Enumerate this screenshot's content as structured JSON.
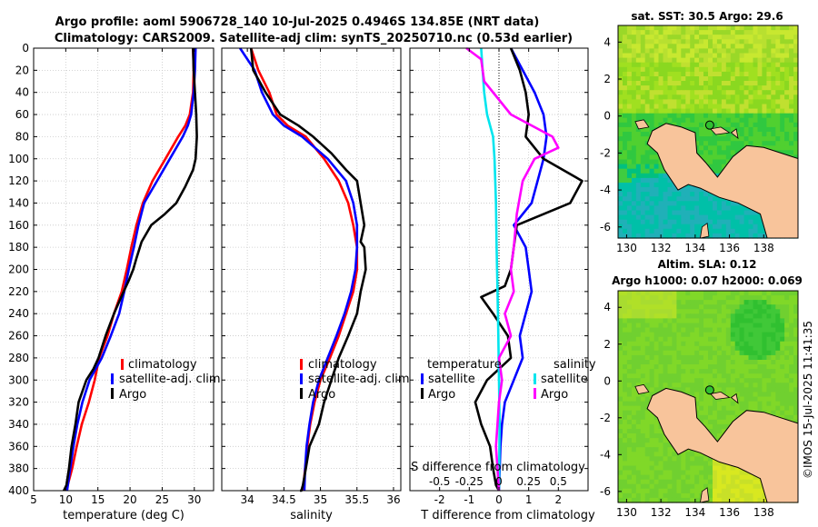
{
  "header": {
    "title_line1": "Argo profile: aoml 5906728_140 10-Jul-2025 0.4946S 134.85E (NRT data)",
    "title_line2": "Climatology: CARS2009. Satellite-adj clim: synTS_20250710.nc (0.53d earlier)"
  },
  "colors": {
    "climatology": "#ff0000",
    "satellite": "#0000ff",
    "argo": "#000000",
    "sal_satellite": "#00e5ee",
    "sal_argo": "#ff00ff",
    "land": "#f8c49b",
    "ocean_deep": "#00c0c0"
  },
  "chart_data": [
    {
      "type": "line",
      "name": "temperature",
      "xlabel": "temperature (deg C)",
      "ylabel": "",
      "xlim": [
        5,
        33
      ],
      "ylim": [
        400,
        0
      ],
      "xticks": [
        5,
        10,
        15,
        20,
        25,
        30
      ],
      "yticks": [
        0,
        20,
        40,
        60,
        80,
        100,
        120,
        140,
        160,
        180,
        200,
        220,
        240,
        260,
        280,
        300,
        320,
        340,
        360,
        380,
        400
      ],
      "legend": [
        "climatology",
        "satellite-adj. clim",
        "Argo"
      ],
      "series": [
        {
          "name": "climatology",
          "color": "#ff0000",
          "x": [
            29.8,
            29.9,
            29.8,
            29.3,
            28.6,
            27.5,
            25.5,
            23.5,
            22.0,
            21.0,
            20.2,
            19.5,
            18.7,
            17.5,
            16.5,
            15.2,
            14.5,
            13.6,
            12.5,
            11.7,
            11.0,
            10.3,
            9.8
          ],
          "y": [
            0,
            20,
            40,
            60,
            70,
            80,
            100,
            120,
            140,
            160,
            180,
            200,
            220,
            240,
            260,
            280,
            300,
            320,
            340,
            360,
            380,
            395,
            400
          ]
        },
        {
          "name": "satellite-adj. clim",
          "color": "#0000ff",
          "x": [
            30.2,
            30.1,
            29.9,
            29.5,
            29.0,
            28.2,
            26.2,
            24.2,
            22.2,
            21.3,
            20.6,
            19.8,
            19.1,
            18.3,
            17.0,
            15.6,
            13.7,
            12.6,
            11.8,
            11.2,
            10.7,
            10.2
          ],
          "y": [
            0,
            20,
            40,
            60,
            70,
            80,
            100,
            120,
            140,
            160,
            180,
            200,
            220,
            240,
            260,
            280,
            300,
            320,
            340,
            360,
            380,
            400
          ]
        },
        {
          "name": "Argo",
          "color": "#000000",
          "x": [
            29.8,
            29.9,
            30.1,
            30.3,
            30.4,
            30.2,
            29.8,
            28.6,
            27.2,
            25.4,
            23.3,
            21.8,
            21.0,
            20.5,
            19.8,
            19.0,
            17.5,
            16.2,
            15.1,
            14.3,
            13.2,
            12.0,
            11.5,
            10.9,
            10.5,
            10.1,
            9.7
          ],
          "y": [
            0,
            20,
            40,
            60,
            80,
            100,
            110,
            125,
            140,
            150,
            160,
            175,
            190,
            200,
            210,
            220,
            240,
            260,
            280,
            290,
            300,
            320,
            340,
            360,
            380,
            395,
            400
          ]
        }
      ]
    },
    {
      "type": "line",
      "name": "salinity",
      "xlabel": "salinity",
      "xlim": [
        33.65,
        36.1
      ],
      "ylim": [
        400,
        0
      ],
      "xticks": [
        34,
        34.5,
        35,
        35.5,
        36
      ],
      "legend": [
        "climatology",
        "satellite-adj. clim",
        "Argo"
      ],
      "series": [
        {
          "name": "climatology",
          "color": "#ff0000",
          "x": [
            34.05,
            34.15,
            34.3,
            34.4,
            34.55,
            34.8,
            35.05,
            35.25,
            35.38,
            35.45,
            35.5,
            35.5,
            35.45,
            35.35,
            35.25,
            35.13,
            35.0,
            34.92,
            34.86,
            34.82,
            34.79,
            34.76
          ],
          "y": [
            0,
            20,
            40,
            60,
            70,
            80,
            100,
            120,
            140,
            160,
            180,
            200,
            220,
            240,
            260,
            280,
            300,
            320,
            340,
            360,
            380,
            400
          ]
        },
        {
          "name": "satellite-adj. clim",
          "color": "#0000ff",
          "x": [
            33.9,
            34.1,
            34.2,
            34.35,
            34.5,
            34.75,
            35.1,
            35.35,
            35.45,
            35.5,
            35.5,
            35.48,
            35.42,
            35.33,
            35.22,
            35.1,
            34.98,
            34.9,
            34.85,
            34.81,
            34.79,
            34.78
          ],
          "y": [
            0,
            20,
            40,
            60,
            70,
            80,
            100,
            120,
            140,
            160,
            180,
            200,
            220,
            240,
            260,
            280,
            300,
            320,
            340,
            360,
            380,
            400
          ]
        },
        {
          "name": "Argo",
          "color": "#000000",
          "x": [
            34.05,
            34.08,
            34.25,
            34.45,
            34.7,
            34.9,
            35.15,
            35.35,
            35.5,
            35.55,
            35.6,
            35.55,
            35.6,
            35.62,
            35.55,
            35.5,
            35.38,
            35.25,
            35.15,
            35.05,
            34.98,
            34.85,
            34.8,
            34.76,
            34.74,
            34.72
          ],
          "y": [
            0,
            20,
            40,
            60,
            70,
            80,
            95,
            110,
            120,
            140,
            160,
            175,
            180,
            200,
            220,
            240,
            260,
            280,
            300,
            320,
            340,
            360,
            380,
            395,
            400,
            400
          ]
        }
      ]
    },
    {
      "type": "line",
      "name": "difference",
      "xlabel": "T difference from climatology",
      "xlabel_top": "S difference from climatology",
      "xlim": [
        -3,
        3
      ],
      "ylim": [
        400,
        0
      ],
      "xticks": [
        -2,
        -1,
        0,
        1,
        2
      ],
      "xticks_s_labels": [
        "-0.5",
        "-0.25",
        "0",
        "0.25",
        "0.5"
      ],
      "legend_t_title": "temperature",
      "legend_s_title": "salinity",
      "legend_t": [
        "satellite",
        "Argo"
      ],
      "legend_s": [
        "satellite",
        "Argo"
      ],
      "series": [
        {
          "name": "T satellite",
          "color": "#0000ff",
          "x": [
            0.4,
            0.8,
            1.2,
            1.5,
            1.6,
            1.5,
            1.3,
            1.1,
            0.5,
            0.9,
            1.0,
            1.1,
            0.9,
            0.7,
            0.8,
            0.5,
            0.2,
            0.1,
            0.05,
            0.0
          ],
          "y": [
            0,
            20,
            40,
            60,
            80,
            100,
            120,
            140,
            160,
            180,
            200,
            220,
            240,
            260,
            280,
            300,
            320,
            340,
            360,
            400
          ]
        },
        {
          "name": "T Argo",
          "color": "#000000",
          "x": [
            0.4,
            0.7,
            0.9,
            1.0,
            0.9,
            1.5,
            2.8,
            2.4,
            0.6,
            0.5,
            0.4,
            0.2,
            -0.6,
            -0.2,
            0.3,
            0.4,
            -0.4,
            -0.8,
            -0.6,
            -0.3,
            -0.2,
            -0.1,
            0.0
          ],
          "y": [
            0,
            20,
            40,
            60,
            80,
            100,
            120,
            140,
            160,
            180,
            200,
            215,
            225,
            240,
            260,
            280,
            300,
            320,
            340,
            360,
            380,
            395,
            400
          ]
        },
        {
          "name": "S satellite",
          "color": "#00e5ee",
          "x": [
            -0.6,
            -0.55,
            -0.5,
            -0.4,
            -0.2,
            -0.15,
            -0.1,
            -0.08,
            -0.05,
            -0.02,
            0.0,
            0.02,
            0.0
          ],
          "y": [
            0,
            20,
            40,
            60,
            80,
            100,
            140,
            180,
            220,
            260,
            300,
            340,
            400
          ]
        },
        {
          "name": "S Argo",
          "color": "#ff00ff",
          "x": [
            -1.1,
            -0.6,
            -0.5,
            0.4,
            1.8,
            2.0,
            1.2,
            0.8,
            0.6,
            0.5,
            0.4,
            0.5,
            0.2,
            0.4,
            0.0,
            0.1,
            0.0,
            -0.1,
            0.0
          ],
          "y": [
            0,
            10,
            30,
            60,
            80,
            90,
            100,
            120,
            150,
            180,
            200,
            220,
            240,
            260,
            280,
            300,
            320,
            360,
            400
          ]
        }
      ]
    }
  ],
  "maps": {
    "sst_title": "sat. SST: 30.5 Argo: 29.6",
    "sla_title_line1": "Altim. SLA: 0.12",
    "sla_title_line2": "Argo h1000: 0.07 h2000: 0.069",
    "lon_ticks": [
      "130",
      "132",
      "134",
      "136",
      "138"
    ],
    "lat_ticks": [
      "4",
      "2",
      "0",
      "-2",
      "-4",
      "-6"
    ],
    "copyright": "©IMOS 15-Jul-2025 11:41:35"
  }
}
